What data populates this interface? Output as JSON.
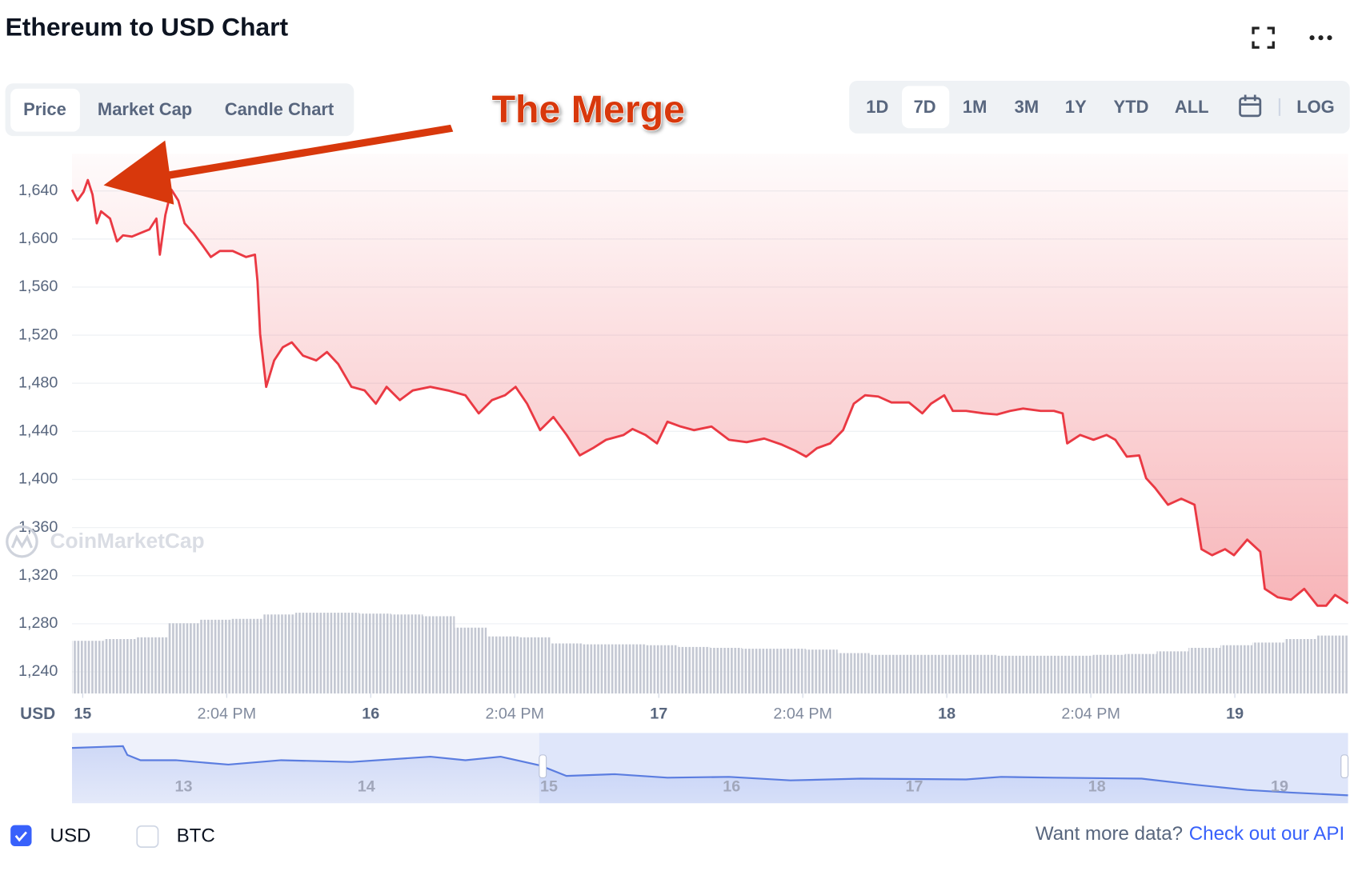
{
  "header": {
    "title": "Ethereum to USD Chart"
  },
  "tabs": [
    "Price",
    "Market Cap",
    "Candle Chart"
  ],
  "ranges": [
    "1D",
    "7D",
    "1M",
    "3M",
    "1Y",
    "YTD",
    "ALL"
  ],
  "log_button": "LOG",
  "chart_data": {
    "type": "line",
    "annotation": "The Merge",
    "watermark": "CoinMarketCap",
    "y_label": "USD",
    "color": "#ea3943",
    "grid": true,
    "log_scale": false,
    "xlim": [
      14.963,
      19.393
    ],
    "ylim": [
      1222,
      1671
    ],
    "xticks": [
      {
        "value": 15,
        "label": "15"
      },
      {
        "value": 15.5,
        "label": "2:04 PM"
      },
      {
        "value": 16,
        "label": "16"
      },
      {
        "value": 16.5,
        "label": "2:04 PM"
      },
      {
        "value": 17,
        "label": "17"
      },
      {
        "value": 17.5,
        "label": "2:04 PM"
      },
      {
        "value": 18,
        "label": "18"
      },
      {
        "value": 18.5,
        "label": "2:04 PM"
      },
      {
        "value": 19,
        "label": "19"
      }
    ],
    "yticks": [
      {
        "value": 1240,
        "label": "1,240"
      },
      {
        "value": 1280,
        "label": "1,280"
      },
      {
        "value": 1320,
        "label": "1,320"
      },
      {
        "value": 1360,
        "label": "1,360"
      },
      {
        "value": 1400,
        "label": "1,400"
      },
      {
        "value": 1440,
        "label": "1,440"
      },
      {
        "value": 1480,
        "label": "1,480"
      },
      {
        "value": 1520,
        "label": "1,520"
      },
      {
        "value": 1560,
        "label": "1,560"
      },
      {
        "value": 1600,
        "label": "1,600"
      },
      {
        "value": 1640,
        "label": "1,640"
      }
    ],
    "x": [
      14.963,
      14.982,
      15.003,
      15.018,
      15.034,
      15.049,
      15.064,
      15.095,
      15.119,
      15.14,
      15.171,
      15.201,
      15.232,
      15.256,
      15.268,
      15.287,
      15.308,
      15.332,
      15.354,
      15.384,
      15.415,
      15.445,
      15.476,
      15.521,
      15.567,
      15.598,
      15.607,
      15.616,
      15.637,
      15.665,
      15.695,
      15.726,
      15.765,
      15.811,
      15.848,
      15.887,
      15.933,
      15.979,
      16.018,
      16.055,
      16.101,
      16.146,
      16.207,
      16.268,
      16.329,
      16.375,
      16.421,
      16.466,
      16.503,
      16.543,
      16.588,
      16.634,
      16.68,
      16.726,
      16.771,
      16.817,
      16.878,
      16.909,
      16.954,
      16.994,
      17.03,
      17.076,
      17.122,
      17.183,
      17.244,
      17.305,
      17.366,
      17.427,
      17.473,
      17.512,
      17.549,
      17.595,
      17.64,
      17.677,
      17.716,
      17.762,
      17.808,
      17.869,
      17.915,
      17.945,
      17.991,
      18.021,
      18.067,
      18.128,
      18.174,
      18.22,
      18.265,
      18.326,
      18.372,
      18.402,
      18.418,
      18.463,
      18.509,
      18.555,
      18.585,
      18.625,
      18.668,
      18.692,
      18.723,
      18.768,
      18.814,
      18.86,
      18.884,
      18.921,
      18.966,
      18.997,
      19.043,
      19.088,
      19.104,
      19.149,
      19.195,
      19.241,
      19.287,
      19.317,
      19.348,
      19.393
    ],
    "values": [
      1641,
      1632,
      1639,
      1649,
      1637,
      1613,
      1623,
      1617,
      1598,
      1603,
      1602,
      1605,
      1608,
      1617,
      1587,
      1620,
      1641,
      1632,
      1613,
      1605,
      1595,
      1585,
      1590,
      1590,
      1585,
      1587,
      1565,
      1521,
      1477,
      1499,
      1510,
      1514,
      1503,
      1499,
      1506,
      1496,
      1477,
      1474,
      1463,
      1477,
      1466,
      1474,
      1477,
      1474,
      1470,
      1455,
      1466,
      1470,
      1477,
      1463,
      1441,
      1452,
      1437,
      1420,
      1426,
      1433,
      1437,
      1442,
      1437,
      1430,
      1448,
      1444,
      1441,
      1444,
      1433,
      1431,
      1434,
      1429,
      1424,
      1419,
      1426,
      1430,
      1441,
      1463,
      1470,
      1469,
      1464,
      1464,
      1455,
      1463,
      1470,
      1457,
      1457,
      1455,
      1454,
      1457,
      1459,
      1457,
      1457,
      1455,
      1430,
      1437,
      1433,
      1437,
      1433,
      1419,
      1420,
      1401,
      1393,
      1379,
      1384,
      1379,
      1342,
      1337,
      1342,
      1337,
      1350,
      1340,
      1309,
      1302,
      1300,
      1309,
      1295,
      1295,
      1304,
      1297
    ],
    "volume": {
      "color": "#c3c7d2",
      "lim": [
        0,
        100
      ],
      "values": [
        60,
        62,
        64,
        80,
        84,
        85,
        90,
        92,
        92,
        91,
        90,
        88,
        75,
        65,
        64,
        57,
        56,
        56,
        55,
        53,
        52,
        51,
        51,
        50,
        46,
        44,
        44,
        44,
        44,
        43,
        43,
        43,
        44,
        45,
        48,
        52,
        55,
        58,
        62,
        66
      ]
    }
  },
  "navigator": {
    "color": "#5b7de0",
    "xlim": [
      12.389,
      19.375
    ],
    "ylim": [
      1223,
      1905
    ],
    "xticks": [
      13,
      14,
      15,
      16,
      17,
      18,
      19
    ],
    "window": [
      14.947,
      19.375
    ],
    "x": [
      12.389,
      12.668,
      12.692,
      12.764,
      12.957,
      13.245,
      13.534,
      13.918,
      14.351,
      14.543,
      14.736,
      14.952,
      15.096,
      15.361,
      15.649,
      15.986,
      16.322,
      16.707,
      17.284,
      17.476,
      17.764,
      18.245,
      18.534,
      18.822,
      19.063,
      19.375
    ],
    "values": [
      1760,
      1777,
      1692,
      1641,
      1641,
      1598,
      1641,
      1624,
      1675,
      1641,
      1675,
      1590,
      1488,
      1505,
      1471,
      1479,
      1445,
      1462,
      1454,
      1479,
      1471,
      1462,
      1403,
      1352,
      1326,
      1300
    ]
  },
  "legend": [
    {
      "label": "USD",
      "checked": true
    },
    {
      "label": "BTC",
      "checked": false
    }
  ],
  "footer": {
    "prompt": "Want more data?",
    "link": "Check out our API"
  }
}
